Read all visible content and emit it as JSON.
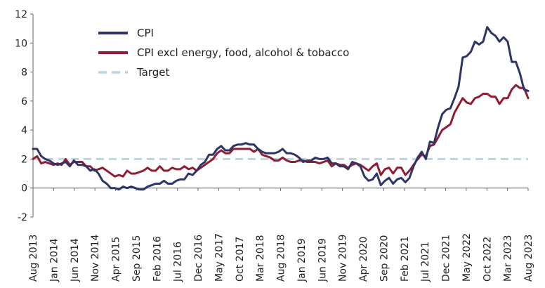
{
  "chart_data": {
    "type": "line",
    "title": "",
    "xlabel": "",
    "ylabel": "",
    "ylim": [
      -2,
      12
    ],
    "y_ticks": [
      -2,
      0,
      2,
      4,
      6,
      8,
      10,
      12
    ],
    "grid": false,
    "legend_position": "top-left",
    "x_tick_labels": [
      "Aug 2013",
      "Jan 2014",
      "Jun 2014",
      "Nov 2014",
      "Apr 2015",
      "Sep 2015",
      "Feb 2016",
      "Jul 2016",
      "Dec 2016",
      "May 2017",
      "Oct 2017",
      "Mar 2018",
      "Aug 2018",
      "Jan 2019",
      "Jun 2019",
      "Nov 2019",
      "Apr 2020",
      "Sep 2020",
      "Feb 2021",
      "Jul 2021",
      "Dec 2021",
      "May 2022",
      "Oct 2022",
      "Mar 2023",
      "Aug 2023"
    ],
    "x_start": "Aug 2013",
    "x_end": "Aug 2023",
    "series": [
      {
        "name": "CPI",
        "color": "#2e3566",
        "style": "solid",
        "values": [
          2.7,
          2.7,
          2.2,
          2.0,
          1.9,
          1.7,
          1.6,
          1.7,
          1.8,
          1.5,
          1.9,
          1.6,
          1.6,
          1.5,
          1.2,
          1.3,
          1.0,
          0.5,
          0.3,
          0.0,
          0.0,
          -0.1,
          0.1,
          0.0,
          0.1,
          0.0,
          -0.1,
          -0.1,
          0.1,
          0.2,
          0.3,
          0.3,
          0.5,
          0.3,
          0.3,
          0.5,
          0.6,
          0.6,
          1.0,
          0.9,
          1.2,
          1.6,
          1.8,
          2.3,
          2.3,
          2.7,
          2.9,
          2.6,
          2.6,
          2.9,
          3.0,
          3.0,
          3.1,
          3.0,
          3.0,
          2.7,
          2.5,
          2.4,
          2.4,
          2.4,
          2.5,
          2.7,
          2.4,
          2.4,
          2.3,
          2.1,
          1.8,
          1.9,
          1.9,
          2.1,
          2.0,
          2.0,
          2.1,
          1.7,
          1.7,
          1.5,
          1.5,
          1.3,
          1.8,
          1.7,
          1.5,
          0.8,
          0.5,
          0.6,
          1.0,
          0.2,
          0.5,
          0.7,
          0.3,
          0.6,
          0.7,
          0.4,
          0.7,
          1.5,
          2.1,
          2.5,
          2.0,
          3.2,
          3.1,
          4.2,
          5.1,
          5.4,
          5.5,
          6.2,
          7.0,
          9.0,
          9.1,
          9.4,
          10.1,
          9.9,
          10.1,
          11.1,
          10.7,
          10.5,
          10.1,
          10.4,
          10.1,
          8.7,
          8.7,
          7.9,
          6.8,
          6.7
        ]
      },
      {
        "name": "CPI excl energy, food, alcohol & tobacco",
        "color": "#8f1d34",
        "style": "solid",
        "values": [
          2.0,
          2.2,
          1.7,
          1.8,
          1.7,
          1.6,
          1.7,
          1.6,
          2.0,
          1.6,
          1.8,
          1.8,
          1.8,
          1.5,
          1.5,
          1.2,
          1.3,
          1.4,
          1.2,
          1.0,
          0.8,
          0.9,
          0.8,
          1.2,
          1.0,
          1.0,
          1.1,
          1.2,
          1.4,
          1.2,
          1.2,
          1.5,
          1.2,
          1.2,
          1.4,
          1.3,
          1.3,
          1.5,
          1.3,
          1.4,
          1.2,
          1.4,
          1.6,
          1.8,
          2.0,
          2.4,
          2.6,
          2.4,
          2.4,
          2.7,
          2.7,
          2.7,
          2.7,
          2.7,
          2.5,
          2.7,
          2.3,
          2.2,
          2.1,
          1.9,
          1.9,
          2.1,
          1.9,
          1.8,
          1.8,
          1.9,
          1.9,
          1.8,
          1.8,
          1.8,
          1.7,
          1.8,
          1.9,
          1.5,
          1.7,
          1.6,
          1.6,
          1.4,
          1.6,
          1.7,
          1.6,
          1.4,
          1.2,
          1.5,
          1.7,
          0.9,
          1.3,
          1.4,
          1.0,
          1.4,
          1.4,
          0.9,
          1.2,
          1.6,
          2.0,
          2.3,
          2.2,
          2.9,
          3.0,
          3.5,
          4.0,
          4.2,
          4.4,
          5.2,
          5.7,
          6.2,
          5.9,
          5.8,
          6.2,
          6.3,
          6.5,
          6.5,
          6.3,
          6.3,
          5.8,
          6.2,
          6.2,
          6.8,
          7.1,
          6.9,
          6.9,
          6.2
        ]
      },
      {
        "name": "Target",
        "color": "#bcd5e2",
        "style": "dashed",
        "values": [
          2,
          2
        ]
      }
    ]
  }
}
